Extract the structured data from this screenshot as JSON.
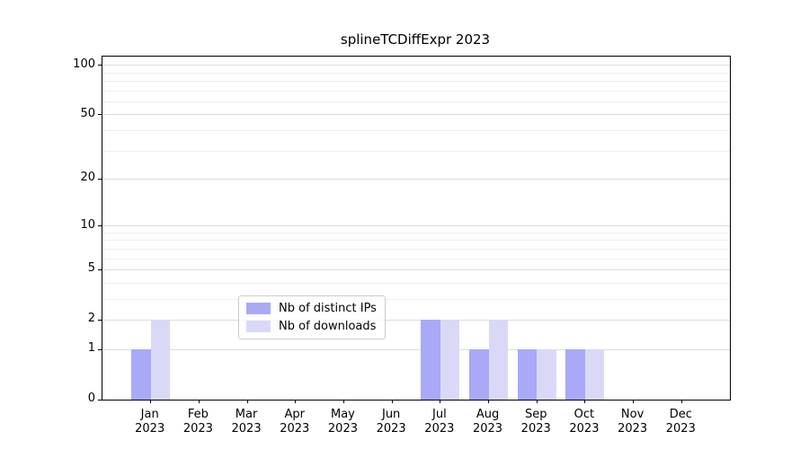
{
  "title": "splineTCDiffExpr 2023",
  "chart_data": {
    "type": "bar",
    "title": "splineTCDiffExpr 2023",
    "categories": [
      "Jan",
      "Feb",
      "Mar",
      "Apr",
      "May",
      "Jun",
      "Jul",
      "Aug",
      "Sep",
      "Oct",
      "Nov",
      "Dec"
    ],
    "category_year": "2023",
    "series": [
      {
        "name": "Nb of distinct IPs",
        "color": "#a9a9f7",
        "values": [
          1,
          0,
          0,
          0,
          0,
          0,
          2,
          1,
          1,
          1,
          0,
          0
        ]
      },
      {
        "name": "Nb of downloads",
        "color": "#d9d9f7",
        "values": [
          2,
          0,
          0,
          0,
          0,
          0,
          2,
          2,
          1,
          1,
          0,
          0
        ]
      }
    ],
    "xlabel": "",
    "ylabel": "",
    "yscale": "log1p",
    "ylim": [
      0,
      113
    ],
    "yticks": [
      0,
      1,
      2,
      5,
      10,
      20,
      50,
      100
    ],
    "minor_yticks": [
      3,
      4,
      6,
      7,
      8,
      9,
      30,
      40,
      60,
      70,
      80,
      90
    ],
    "grid": true,
    "legend_position": "lower center",
    "bar_group_width": 0.8,
    "colors": {
      "axis": "#000000",
      "major_grid": "#dcdcdc",
      "minor_grid": "#efefef",
      "legend_border": "#cccccc",
      "background": "#ffffff"
    }
  }
}
